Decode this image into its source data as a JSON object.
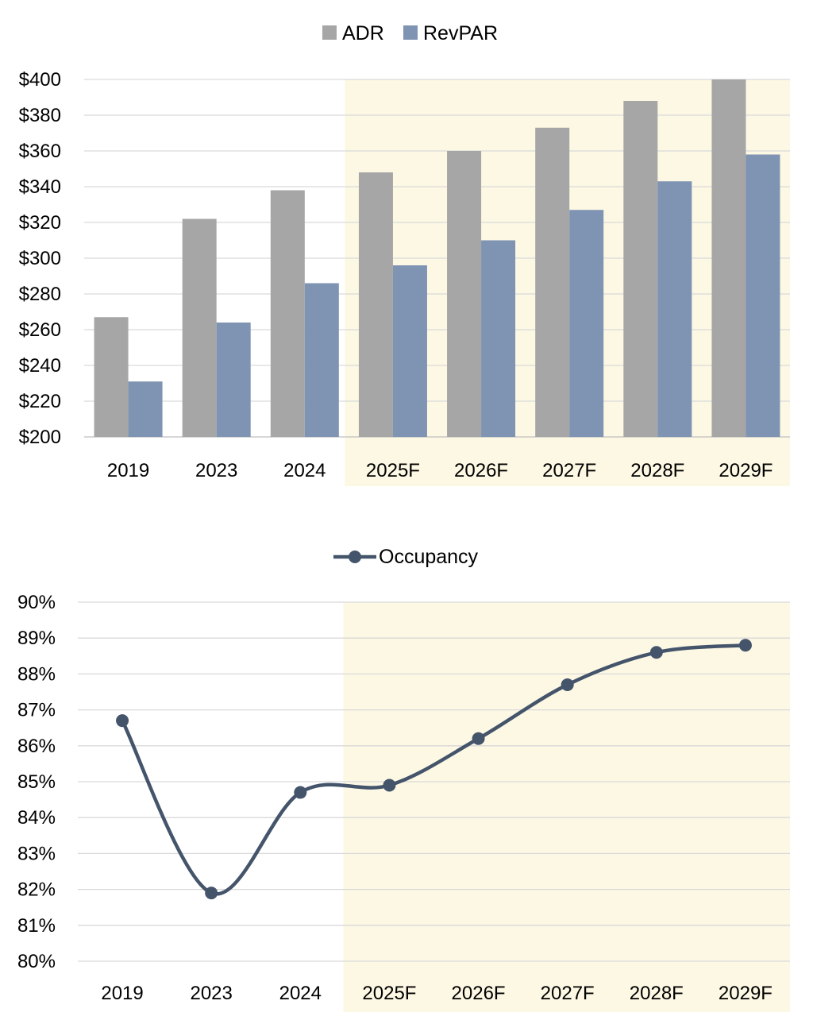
{
  "colors": {
    "adr": "#a6a6a6",
    "revpar": "#7f93b3",
    "occupancy": "#44546a",
    "forecast_shade": "#fdf8e4",
    "grid": "#d9d9d9"
  },
  "chart_data": [
    {
      "type": "bar",
      "categories": [
        "2019",
        "2023",
        "2024",
        "2025F",
        "2026F",
        "2027F",
        "2028F",
        "2029F"
      ],
      "series": [
        {
          "name": "ADR",
          "values": [
            267,
            322,
            338,
            348,
            360,
            373,
            388,
            400
          ]
        },
        {
          "name": "RevPAR",
          "values": [
            231,
            264,
            286,
            296,
            310,
            327,
            343,
            358
          ]
        }
      ],
      "ylim": [
        200,
        400
      ],
      "ytick_labels": [
        "$200",
        "$220",
        "$240",
        "$260",
        "$280",
        "$300",
        "$320",
        "$340",
        "$360",
        "$380",
        "$400"
      ],
      "ytick_values": [
        200,
        220,
        240,
        260,
        280,
        300,
        320,
        340,
        360,
        380,
        400
      ],
      "grid": true,
      "legend_position": "top-center",
      "forecast_shading_from": "2025F"
    },
    {
      "type": "line",
      "categories": [
        "2019",
        "2023",
        "2024",
        "2025F",
        "2026F",
        "2027F",
        "2028F",
        "2029F"
      ],
      "series": [
        {
          "name": "Occupancy",
          "values": [
            86.7,
            81.9,
            84.7,
            84.9,
            86.2,
            87.7,
            88.6,
            88.8
          ]
        }
      ],
      "ylim": [
        80,
        90
      ],
      "ytick_labels": [
        "80%",
        "81%",
        "82%",
        "83%",
        "84%",
        "85%",
        "86%",
        "87%",
        "88%",
        "89%",
        "90%"
      ],
      "ytick_values": [
        80,
        81,
        82,
        83,
        84,
        85,
        86,
        87,
        88,
        89,
        90
      ],
      "grid": true,
      "smooth": true,
      "markers": true,
      "legend_position": "top-center",
      "forecast_shading_from": "2025F"
    }
  ]
}
